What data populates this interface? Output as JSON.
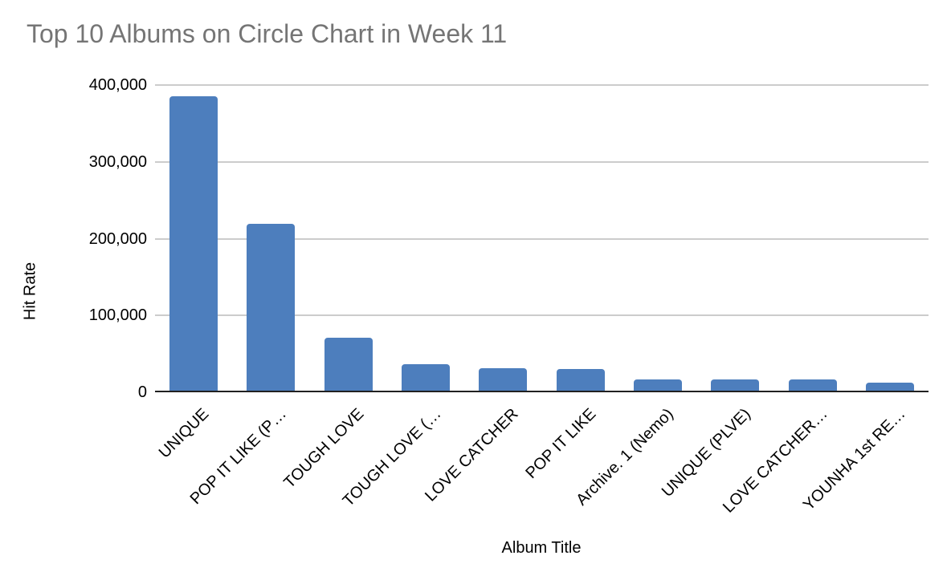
{
  "title": "Top 10 Albums on Circle Chart in Week 11",
  "colors": {
    "bar": "#4d7ebd",
    "title_text": "#757575",
    "gridline": "#cccccc",
    "axis_line": "#212121",
    "label_text": "#000000",
    "background": "#ffffff"
  },
  "chart_data": {
    "type": "bar",
    "title": "Top 10 Albums on Circle Chart in Week 11",
    "xlabel": "Album Title",
    "ylabel": "Hit Rate",
    "categories": [
      "UNIQUE",
      "POP IT LIKE (P…",
      "TOUGH LOVE",
      "TOUGH LOVE (…",
      "LOVE CATCHER",
      "POP IT LIKE",
      "Archive. 1 (Nemo)",
      "UNIQUE (PLVE)",
      "LOVE CATCHER…",
      "YOUNHA 1st RE…"
    ],
    "values": [
      383000,
      217000,
      69000,
      35000,
      29500,
      28000,
      14500,
      14500,
      15000,
      10500
    ],
    "ylim": [
      0,
      400000
    ],
    "yticks": [
      0,
      100000,
      200000,
      300000,
      400000
    ],
    "ytick_labels": [
      "0",
      "100,000",
      "200,000",
      "300,000",
      "400,000"
    ],
    "grid": true,
    "legend": false,
    "bar_color": "#4d7ebd",
    "label_rotation_deg": -45
  }
}
